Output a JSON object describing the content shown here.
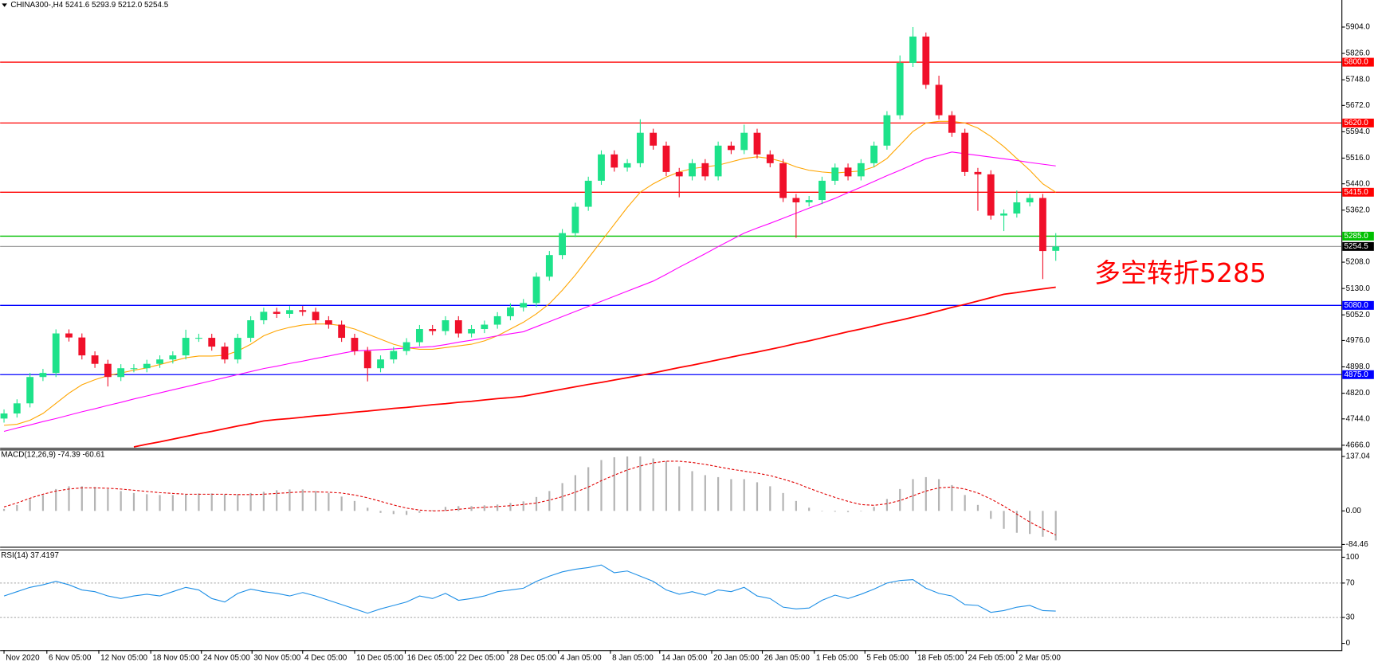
{
  "chart_data": [
    {
      "type": "candlestick",
      "title": "CHINA300-,H4  5241.6 5293.9 5212.0 5254.5",
      "annotation": "多空转折5285",
      "annotation_color": "#ff0000",
      "up_color": "#1de28a",
      "down_color": "#f0102a",
      "xlim": [
        -0.3,
        103
      ],
      "xticks": [
        {
          "value": 0,
          "label": "Nov 2020"
        },
        {
          "value": 3.3,
          "label": "6 Nov 05:00"
        },
        {
          "value": 7.3,
          "label": "12 Nov 05:00"
        },
        {
          "value": 11.3,
          "label": "18 Nov 05:00"
        },
        {
          "value": 15.2,
          "label": "24 Nov 05:00"
        },
        {
          "value": 19.1,
          "label": "30 Nov 05:00"
        },
        {
          "value": 23,
          "label": "4 Dec 05:00"
        },
        {
          "value": 27,
          "label": "10 Dec 05:00"
        },
        {
          "value": 30.9,
          "label": "16 Dec 05:00"
        },
        {
          "value": 34.8,
          "label": "22 Dec 05:00"
        },
        {
          "value": 38.8,
          "label": "28 Dec 05:00"
        },
        {
          "value": 42.7,
          "label": "4 Jan 05:00"
        },
        {
          "value": 46.7,
          "label": "8 Jan 05:00"
        },
        {
          "value": 50.5,
          "label": "14 Jan 05:00"
        },
        {
          "value": 54.5,
          "label": "20 Jan 05:00"
        },
        {
          "value": 58.4,
          "label": "26 Jan 05:00"
        },
        {
          "value": 62.4,
          "label": "1 Feb 05:00"
        },
        {
          "value": 66.3,
          "label": "5 Feb 05:00"
        },
        {
          "value": 70.2,
          "label": "18 Feb 05:00"
        },
        {
          "value": 74.1,
          "label": "24 Feb 05:00"
        },
        {
          "value": 78,
          "label": "2 Mar 05:00"
        }
      ],
      "ylim": [
        4661,
        5953
      ],
      "yticks": [
        {
          "value": 5904,
          "label": "5904.0"
        },
        {
          "value": 5826,
          "label": "5826.0"
        },
        {
          "value": 5748,
          "label": "5748.0"
        },
        {
          "value": 5672,
          "label": "5672.0"
        },
        {
          "value": 5594,
          "label": "5594.0"
        },
        {
          "value": 5516,
          "label": "5516.0"
        },
        {
          "value": 5440,
          "label": "5440.0"
        },
        {
          "value": 5362,
          "label": "5362.0"
        },
        {
          "value": 5208,
          "label": "5208.0"
        },
        {
          "value": 5130,
          "label": "5130.0"
        },
        {
          "value": 5052,
          "label": "5052.0"
        },
        {
          "value": 4976,
          "label": "4976.0"
        },
        {
          "value": 4898,
          "label": "4898.0"
        },
        {
          "value": 4820,
          "label": "4820.0"
        },
        {
          "value": 4744,
          "label": "4744.0"
        },
        {
          "value": 4666,
          "label": "4666.0"
        }
      ],
      "levels": [
        {
          "value": 5800,
          "label": "5800.0",
          "color": "#ff0000"
        },
        {
          "value": 5620,
          "label": "5620.0",
          "color": "#ff0000"
        },
        {
          "value": 5415,
          "label": "5415.0",
          "color": "#ff0000"
        },
        {
          "value": 5285,
          "label": "5285.0",
          "color": "#00c000"
        },
        {
          "value": 5080,
          "label": "5080.0",
          "color": "#0000ff"
        },
        {
          "value": 4875,
          "label": "4875.0",
          "color": "#0000ff"
        },
        {
          "value": 5254.5,
          "label": "5254.5",
          "color": "#000000",
          "line_color": "#a0a0a0"
        }
      ],
      "open": [
        4745,
        4760,
        4790,
        4868,
        4880,
        4997,
        4985,
        4932,
        4907,
        4868,
        4894,
        4894,
        4907,
        4920,
        4932,
        4984,
        4984,
        4958,
        4920,
        4984,
        5036,
        5061,
        5055,
        5066,
        5061,
        5036,
        5023,
        4984,
        4945,
        4894,
        4920,
        4945,
        4971,
        5010,
        5004,
        5036,
        4997,
        5010,
        5023,
        5048,
        5074,
        5087,
        5165,
        5229,
        5294,
        5372,
        5449,
        5527,
        5488,
        5501,
        5591,
        5553,
        5475,
        5462,
        5501,
        5462,
        5553,
        5540,
        5591,
        5527,
        5501,
        5398,
        5385,
        5392,
        5449,
        5488,
        5462,
        5501,
        5553,
        5643,
        5798,
        5876,
        5733,
        5643,
        5591,
        5475,
        5468,
        5346,
        5352,
        5385,
        5398,
        5241.6
      ],
      "high": [
        4772,
        4802,
        4880,
        4892,
        5009,
        5009,
        4997,
        4944,
        4919,
        4906,
        4906,
        4919,
        4932,
        4944,
        5008,
        4996,
        4996,
        4970,
        4996,
        5048,
        5073,
        5073,
        5078,
        5078,
        5073,
        5048,
        5035,
        4996,
        4957,
        4932,
        4957,
        4983,
        5022,
        5022,
        5048,
        5048,
        5022,
        5035,
        5060,
        5086,
        5099,
        5177,
        5241,
        5306,
        5384,
        5461,
        5539,
        5539,
        5513,
        5631,
        5603,
        5565,
        5487,
        5513,
        5513,
        5565,
        5565,
        5615,
        5603,
        5539,
        5513,
        5410,
        5404,
        5461,
        5500,
        5500,
        5513,
        5565,
        5655,
        5820,
        5904,
        5888,
        5760,
        5655,
        5603,
        5487,
        5480,
        5364,
        5420,
        5410,
        5410,
        5293.9
      ],
      "low": [
        4733,
        4748,
        4778,
        4856,
        4868,
        4973,
        4920,
        4895,
        4840,
        4856,
        4882,
        4882,
        4895,
        4908,
        4920,
        4972,
        4946,
        4908,
        4908,
        4972,
        5024,
        5043,
        5043,
        5049,
        5024,
        5011,
        4972,
        4933,
        4855,
        4882,
        4908,
        4933,
        4959,
        4992,
        4992,
        4985,
        4985,
        4998,
        5011,
        5036,
        5062,
        5075,
        5153,
        5217,
        5282,
        5360,
        5437,
        5476,
        5476,
        5489,
        5541,
        5463,
        5400,
        5450,
        5450,
        5450,
        5528,
        5528,
        5515,
        5489,
        5386,
        5280,
        5373,
        5380,
        5437,
        5450,
        5450,
        5489,
        5541,
        5631,
        5786,
        5721,
        5631,
        5579,
        5463,
        5360,
        5334,
        5300,
        5340,
        5373,
        5158,
        5212.0
      ],
      "close": [
        4760,
        4790,
        4868,
        4880,
        4997,
        4985,
        4932,
        4907,
        4868,
        4894,
        4894,
        4907,
        4920,
        4932,
        4984,
        4984,
        4958,
        4920,
        4984,
        5036,
        5061,
        5055,
        5066,
        5061,
        5036,
        5023,
        4984,
        4945,
        4894,
        4920,
        4945,
        4971,
        5010,
        5004,
        5036,
        4997,
        5010,
        5023,
        5048,
        5074,
        5087,
        5165,
        5229,
        5294,
        5372,
        5449,
        5527,
        5488,
        5501,
        5591,
        5553,
        5475,
        5462,
        5501,
        5462,
        5553,
        5540,
        5591,
        5527,
        5501,
        5398,
        5385,
        5392,
        5449,
        5488,
        5462,
        5501,
        5553,
        5643,
        5798,
        5876,
        5733,
        5643,
        5591,
        5475,
        5468,
        5346,
        5352,
        5385,
        5398,
        5241,
        5254.5
      ],
      "series": [
        {
          "color": "#ffa500",
          "width": 1,
          "values": [
            4725,
            4728,
            4740,
            4760,
            4790,
            4820,
            4845,
            4860,
            4872,
            4880,
            4888,
            4895,
            4905,
            4915,
            4925,
            4930,
            4930,
            4932,
            4945,
            4965,
            4990,
            5005,
            5015,
            5022,
            5025,
            5025,
            5020,
            5010,
            4995,
            4980,
            4965,
            4955,
            4950,
            4950,
            4955,
            4960,
            4965,
            4975,
            4990,
            5010,
            5030,
            5055,
            5085,
            5125,
            5170,
            5220,
            5270,
            5320,
            5370,
            5415,
            5440,
            5460,
            5475,
            5485,
            5490,
            5495,
            5505,
            5515,
            5520,
            5515,
            5505,
            5490,
            5480,
            5475,
            5472,
            5475,
            5478,
            5490,
            5515,
            5555,
            5595,
            5620,
            5625,
            5625,
            5620,
            5605,
            5580,
            5550,
            5515,
            5480,
            5440,
            5415
          ]
        },
        {
          "color": "#ff00ff",
          "width": 1,
          "values": [
            4707,
            4717,
            4726,
            4736,
            4745,
            4755,
            4765,
            4774,
            4784,
            4793,
            4803,
            4812,
            4821,
            4830,
            4839,
            4848,
            4857,
            4866,
            4875,
            4884,
            4893,
            4900,
            4908,
            4915,
            4923,
            4930,
            4938,
            4945,
            4947,
            4949,
            4951,
            4954,
            4956,
            4958,
            4964,
            4971,
            4977,
            4983,
            4990,
            4996,
            5002,
            5017,
            5032,
            5047,
            5062,
            5077,
            5092,
            5107,
            5122,
            5137,
            5152,
            5172,
            5193,
            5213,
            5233,
            5254,
            5274,
            5294,
            5309,
            5323,
            5338,
            5353,
            5368,
            5382,
            5397,
            5414,
            5430,
            5447,
            5464,
            5480,
            5497,
            5514,
            5524,
            5534,
            5529,
            5524,
            5519,
            5514,
            5509,
            5503,
            5498,
            5493
          ]
        },
        {
          "color": "#ff0000",
          "width": 1.6,
          "values": [
            null,
            null,
            null,
            null,
            null,
            null,
            null,
            null,
            null,
            null,
            4661,
            4669,
            4676,
            4684,
            4692,
            4700,
            4707,
            4715,
            4723,
            4730,
            4738,
            4742,
            4745,
            4749,
            4753,
            4756,
            4760,
            4764,
            4767,
            4771,
            4775,
            4778,
            4782,
            4786,
            4789,
            4793,
            4796,
            4800,
            4804,
            4807,
            4811,
            4818,
            4825,
            4832,
            4839,
            4846,
            4852,
            4859,
            4866,
            4873,
            4880,
            4888,
            4896,
            4903,
            4911,
            4919,
            4927,
            4935,
            4942,
            4950,
            4958,
            4967,
            4975,
            4984,
            4993,
            5002,
            5010,
            5019,
            5028,
            5036,
            5045,
            5054,
            5064,
            5074,
            5083,
            5093,
            5103,
            5113,
            5118,
            5124,
            5129,
            5134
          ]
        }
      ]
    },
    {
      "type": "macd",
      "title": "MACD(12,26,9) -74.39 -60.61",
      "ylim": [
        -86,
        150
      ],
      "yticks": [
        137.04,
        {
          "value": 0,
          "label": "0.00"
        },
        -84.46
      ],
      "series": [
        {
          "style": "bar",
          "color": "#b4b4b4",
          "values": [
            5,
            15,
            30,
            40,
            55,
            62,
            62,
            60,
            55,
            50,
            45,
            42,
            40,
            40,
            42,
            44,
            44,
            42,
            42,
            45,
            48,
            52,
            54,
            54,
            50,
            45,
            36,
            25,
            8,
            -5,
            -8,
            -10,
            -5,
            2,
            10,
            12,
            12,
            14,
            16,
            20,
            24,
            35,
            50,
            70,
            90,
            110,
            128,
            135,
            137,
            137,
            132,
            125,
            112,
            100,
            90,
            85,
            80,
            80,
            72,
            62,
            45,
            25,
            8,
            0,
            -2,
            -3,
            0,
            10,
            30,
            55,
            80,
            85,
            80,
            65,
            40,
            15,
            -20,
            -45,
            -55,
            -58,
            -65,
            -74.39
          ]
        },
        {
          "style": "line",
          "dashed": true,
          "color": "#e00000",
          "values": [
            10,
            20,
            32,
            42,
            50,
            55,
            58,
            58,
            57,
            55,
            52,
            49,
            46,
            44,
            42,
            42,
            42,
            42,
            41,
            41,
            42,
            44,
            46,
            48,
            48,
            47,
            45,
            40,
            33,
            24,
            15,
            7,
            2,
            0,
            1,
            4,
            7,
            9,
            11,
            13,
            16,
            20,
            27,
            36,
            47,
            60,
            76,
            90,
            103,
            113,
            121,
            125,
            125,
            122,
            117,
            111,
            105,
            100,
            95,
            89,
            80,
            70,
            57,
            45,
            34,
            24,
            16,
            14,
            18,
            26,
            38,
            50,
            58,
            60,
            55,
            45,
            30,
            12,
            -8,
            -28,
            -45,
            -60.61
          ]
        }
      ]
    },
    {
      "type": "line",
      "title": "RSI(14) 37.4197",
      "ylim": [
        -7,
        107
      ],
      "yticks": [
        100,
        70,
        30,
        0
      ],
      "levels": [
        70,
        30
      ],
      "series": [
        {
          "color": "#1e8fe6",
          "width": 1,
          "values": [
            55,
            60,
            65,
            68,
            72,
            68,
            62,
            60,
            55,
            52,
            55,
            57,
            55,
            60,
            65,
            62,
            52,
            48,
            58,
            63,
            60,
            58,
            55,
            59,
            55,
            50,
            45,
            40,
            35,
            40,
            44,
            48,
            55,
            52,
            58,
            50,
            52,
            55,
            60,
            62,
            64,
            72,
            78,
            83,
            86,
            88,
            91,
            82,
            84,
            78,
            72,
            62,
            57,
            60,
            56,
            62,
            60,
            65,
            55,
            52,
            42,
            40,
            41,
            50,
            56,
            52,
            57,
            63,
            70,
            73,
            74,
            64,
            58,
            55,
            45,
            44,
            36,
            38,
            42,
            44,
            38,
            37.4197
          ]
        }
      ]
    }
  ]
}
